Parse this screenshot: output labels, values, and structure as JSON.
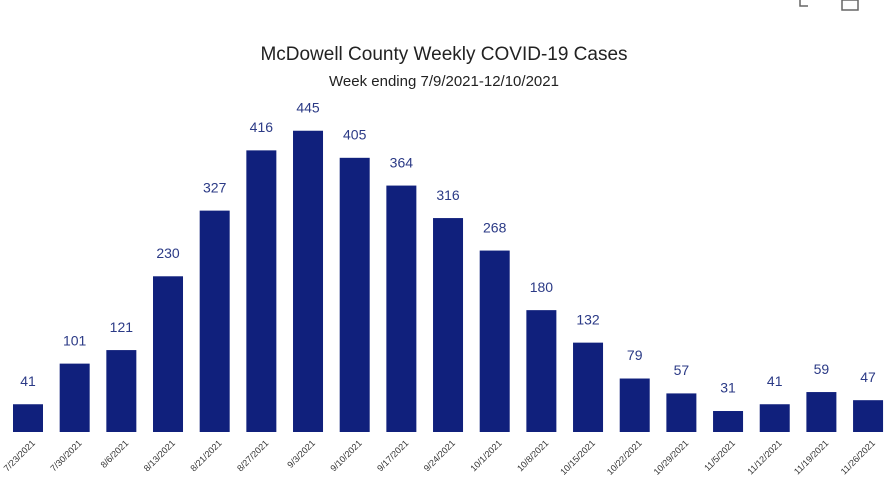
{
  "chart_data": {
    "type": "bar",
    "title": "McDowell County Weekly COVID-19 Cases",
    "subtitle": "Week ending 7/9/2021-12/10/2021",
    "categories": [
      "7/23/2021",
      "7/30/2021",
      "8/6/2021",
      "8/13/2021",
      "8/21/2021",
      "8/27/2021",
      "9/3/2021",
      "9/10/2021",
      "9/17/2021",
      "9/24/2021",
      "10/1/2021",
      "10/8/2021",
      "10/15/2021",
      "10/22/2021",
      "10/29/2021",
      "11/5/2021",
      "11/12/2021",
      "11/19/2021",
      "11/26/2021"
    ],
    "values": [
      41,
      101,
      121,
      230,
      327,
      416,
      445,
      405,
      364,
      316,
      268,
      180,
      132,
      79,
      57,
      31,
      41,
      59,
      47
    ],
    "color": "#10207c"
  }
}
